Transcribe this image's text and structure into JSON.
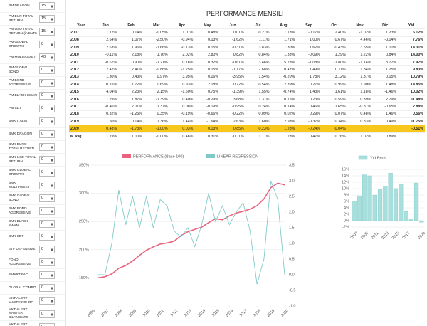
{
  "sidebar": [
    {
      "label": "PM DRAGON",
      "value": 15
    },
    {
      "label": "PM EUR TOTAL RETURN",
      "value": 15
    },
    {
      "label": "PM USD TOTAL RETURN (in EUR)",
      "value": 15
    },
    {
      "label": "PM GLOBAL GROWTH",
      "value": 0
    },
    {
      "label": "PM MULTIASSET",
      "value": 40
    },
    {
      "label": "PM GLOBAL BOND",
      "value": 0
    },
    {
      "label": "PM BOND AGGRESSIVE",
      "value": 0
    },
    {
      "label": "PM BLACK SWAN",
      "value": 0
    },
    {
      "label": "PM SDT",
      "value": 0
    },
    {
      "label": "BMK ITALIA",
      "value": 0
    },
    {
      "label": "BMK DRAGON",
      "value": 0
    },
    {
      "label": "BMK EURO TOTAL RETURN",
      "value": 0
    },
    {
      "label": "BMK USD TOTAL RETURN",
      "value": 0
    },
    {
      "label": "BMK GLOBAL GROWTH",
      "value": 0
    },
    {
      "label": "BMK MULTIASSET",
      "value": 0
    },
    {
      "label": "BMK GLOBAL BOND",
      "value": 0
    },
    {
      "label": "BMK BOND AGGRESSIVE",
      "value": 0
    },
    {
      "label": "BMK BLACK SWAN",
      "value": 0
    },
    {
      "label": "BMK SDT",
      "value": 0
    },
    {
      "label": "ETF DEFENSIVE",
      "value": 0
    },
    {
      "label": "FONDI AGGRESSIVE",
      "value": 0
    },
    {
      "label": "SMART PAC",
      "value": 0
    },
    {
      "label": "GLOBAL COMBO",
      "value": 0
    },
    {
      "label": "MKT ALERT MASTER PURO",
      "value": 0
    },
    {
      "label": "MKT ALERT MASTER BILANCIATO",
      "value": 0
    },
    {
      "label": "MKT ALERT ITALIA BIG CAP",
      "value": 0
    }
  ],
  "table": {
    "title": "PERFORMANCE MENSILI",
    "header": [
      "Year",
      "Jan",
      "Feb",
      "Mar",
      "Apr",
      "May",
      "Jun",
      "Jul",
      "Aug",
      "Sep",
      "Oct",
      "Nov",
      "Dic",
      "Ytd"
    ],
    "rows": [
      {
        "year": "2007",
        "cells": [
          "1.12%",
          "0.14%",
          "-0.05%",
          "1.01%",
          "0.48%",
          "0.01%",
          "-0.27%",
          "1.13%",
          "-0.17%",
          "2.40%",
          "-1.02%",
          "1.23%"
        ],
        "ytd": "6.12%"
      },
      {
        "year": "2008",
        "cells": [
          "2.64%",
          "1.07%",
          "-2.50%",
          "-0.94%",
          "0.13%",
          "-1.62%",
          "1.11%",
          "1.71%",
          "1.00%",
          "0.67%",
          "4.46%",
          "-0.04%"
        ],
        "ytd": "7.76%"
      },
      {
        "year": "2009",
        "cells": [
          "2.63%",
          "1.96%",
          "-1.66%",
          "-0.13%",
          "0.15%",
          "-0.31%",
          "3.83%",
          "1.30%",
          "1.62%",
          "-0.43%",
          "3.55%",
          "1.10%"
        ],
        "ytd": "14.31%"
      },
      {
        "year": "2010",
        "cells": [
          "-0.11%",
          "2.18%",
          "1.76%",
          "2.02%",
          "2.80%",
          "0.82%",
          "-0.84%",
          "1.33%",
          "-0.09%",
          "1.29%",
          "1.22%",
          "0.84%"
        ],
        "ytd": "14.00%"
      },
      {
        "year": "2011",
        "cells": [
          "-0.67%",
          "0.90%",
          "-1.21%",
          "0.76%",
          "0.32%",
          "-0.61%",
          "3.46%",
          "5.28%",
          "-1.08%",
          "-1.80%",
          "-1.14%",
          "3.77%"
        ],
        "ytd": "7.97%"
      },
      {
        "year": "2012",
        "cells": [
          "2.42%",
          "2.41%",
          "-0.86%",
          "-1.25%",
          "0.15%",
          "-1.17%",
          "2.68%",
          "0.47%",
          "1.49%",
          "0.11%",
          "1.84%",
          "1.25%"
        ],
        "ytd": "9.83%"
      },
      {
        "year": "2013",
        "cells": [
          "1.30%",
          "0.43%",
          "0.97%",
          "3.95%",
          "0.06%",
          "-3.95%",
          "1.54%",
          "-0.20%",
          "1.78%",
          "3.12%",
          "1.37%",
          "0.15%"
        ],
        "ytd": "10.79%"
      },
      {
        "year": "2014",
        "cells": [
          "0.15%",
          "1.72%",
          "0.69%",
          "0.93%",
          "2.18%",
          "0.72%",
          "0.54%",
          "2.39%",
          "0.27%",
          "0.99%",
          "1.90%",
          "1.48%"
        ],
        "ytd": "14.85%"
      },
      {
        "year": "2015",
        "cells": [
          "4.04%",
          "2.23%",
          "2.15%",
          "-1.60%",
          "0.75%",
          "-1.39%",
          "1.55%",
          "-0.74%",
          "1.43%",
          "1.61%",
          "1.18%",
          "-1.46%"
        ],
        "ytd": "10.02%"
      },
      {
        "year": "2016",
        "cells": [
          "1.29%",
          "1.87%",
          "-1.39%",
          "0.40%",
          "-0.29%",
          "3.68%",
          "1.31%",
          "0.15%",
          "0.23%",
          "0.59%",
          "0.39%",
          "2.79%"
        ],
        "ytd": "11.48%"
      },
      {
        "year": "2017",
        "cells": [
          "-0.46%",
          "2.01%",
          "1.37%",
          "0.08%",
          "-0.19%",
          "-0.95%",
          "0.24%",
          "0.14%",
          "0.46%",
          "1.65%",
          "-0.81%",
          "-0.65%"
        ],
        "ytd": "2.88%"
      },
      {
        "year": "2018",
        "cells": [
          "0.32%",
          "-1.25%",
          "0.35%",
          "-0.19%",
          "-0.66%",
          "-0.22%",
          "-0.09%",
          "0.02%",
          "0.29%",
          "0.07%",
          "0.48%",
          "1.46%"
        ],
        "ytd": "0.56%"
      },
      {
        "year": "2019",
        "cells": [
          "1.50%",
          "0.14%",
          "1.36%",
          "1.44%",
          "-1.64%",
          "2.63%",
          "1.60%",
          "2.93%",
          "-0.37%",
          "0.34%",
          "0.83%",
          "0.49%"
        ],
        "ytd": "11.75%"
      },
      {
        "year": "2020",
        "cells": [
          "0.48%",
          "-1.73%",
          "-1.00%",
          "0.03%",
          "0.13%",
          "0.85%",
          "-0.23%",
          "1.28%",
          "-0.24%",
          "-0.04%"
        ],
        "ytd": "-0.51%"
      }
    ],
    "avg": {
      "year": "M Avg",
      "cells": [
        "1.19%",
        "1.00%",
        "-0.00%",
        "0.46%",
        "0.31%",
        "-0.11%",
        "1.17%",
        "1.23%",
        "0.47%",
        "0.76%",
        "1.02%",
        "0.89%"
      ]
    }
  },
  "chart_data": [
    {
      "type": "line",
      "series": [
        {
          "name": "PERFORMANCE (Base 100)",
          "color": "#e8637d",
          "x": [
            2006.5,
            2007,
            2007.5,
            2008,
            2008.5,
            2009,
            2009.5,
            2010,
            2010.5,
            2011,
            2011.5,
            2012,
            2012.5,
            2013,
            2013.5,
            2014,
            2014.5,
            2015,
            2015.5,
            2016,
            2016.5,
            2017,
            2017.5,
            2018,
            2018.5,
            2019,
            2019.5,
            2020
          ],
          "values": [
            150,
            152,
            157,
            167,
            172,
            180,
            190,
            199,
            205,
            210,
            212,
            215,
            225,
            232,
            236,
            240,
            248,
            255,
            253,
            260,
            265,
            268,
            272,
            278,
            290,
            310,
            318,
            315
          ]
        },
        {
          "name": "LINEAR REGRESSION",
          "color": "#7fcac8",
          "axis": "y2",
          "x": [
            2006.5,
            2007,
            2007.5,
            2008,
            2008.5,
            2009,
            2009.5,
            2010,
            2010.5,
            2011,
            2011.5,
            2012,
            2012.5,
            2013,
            2013.5,
            2014,
            2014.5,
            2015,
            2015.5,
            2016,
            2016.5,
            2017,
            2017.5,
            2018,
            2018.5,
            2019,
            2019.5,
            2020
          ],
          "values": [
            0.0,
            0.0,
            1.0,
            2.7,
            1.6,
            2.5,
            1.5,
            2.5,
            1.5,
            2.4,
            2.2,
            1.4,
            1.2,
            1.5,
            0.9,
            1.6,
            2.6,
            1.7,
            2.2,
            1.6,
            2.0,
            2.3,
            1.4,
            -0.3,
            0.5,
            3.0,
            2.4,
            0.0
          ]
        }
      ],
      "xlim": [
        2006,
        2020
      ],
      "xticks": [
        2006,
        2007,
        2008,
        2009,
        2010,
        2011,
        2012,
        2013,
        2014,
        2015,
        2016,
        2017,
        2018,
        2019,
        2020
      ],
      "ylim": [
        100,
        350
      ],
      "yticks": [
        {
          "value": 150,
          "label": "150%"
        },
        {
          "value": 200,
          "label": "200%"
        },
        {
          "value": 250,
          "label": "250%"
        },
        {
          "value": 300,
          "label": "300%"
        },
        {
          "value": 350,
          "label": "350%"
        }
      ],
      "y2lim": [
        -1,
        3.5
      ],
      "y2ticks": [
        {
          "value": -1,
          "label": "-1.0"
        },
        {
          "value": -0.5,
          "label": "-0.5"
        },
        {
          "value": 0,
          "label": "0.0"
        },
        0.5,
        {
          "value": 1,
          "label": "1.0"
        },
        1.5,
        {
          "value": 2,
          "label": "2.0"
        },
        2.5,
        {
          "value": 3,
          "label": "3.0"
        },
        3.5
      ],
      "grid": true
    },
    {
      "type": "bar",
      "series": [
        {
          "name": "Ytd Perfs",
          "color": "#a8dfdc",
          "values": [
            6.12,
            7.76,
            14.31,
            14.0,
            7.97,
            9.83,
            10.79,
            14.85,
            10.02,
            11.48,
            2.88,
            0.56,
            11.75,
            -0.51
          ]
        }
      ],
      "categories": [
        "2007",
        null,
        "2009",
        null,
        "2011",
        null,
        "2013",
        null,
        "2015",
        null,
        "2017",
        null,
        null,
        "2020"
      ],
      "ylim": [
        -2,
        16
      ],
      "yticks": [
        {
          "value": -2,
          "label": "-2%"
        },
        {
          "value": 0,
          "label": "0%"
        },
        {
          "value": 2,
          "label": "2%"
        },
        {
          "value": 4,
          "label": "4%"
        },
        {
          "value": 6,
          "label": "6%"
        },
        {
          "value": 8,
          "label": "8%"
        },
        {
          "value": 10,
          "label": "10%"
        },
        {
          "value": 12,
          "label": "12%"
        },
        {
          "value": 14,
          "label": "14%"
        },
        {
          "value": 16,
          "label": "16%"
        }
      ],
      "grid": true
    }
  ]
}
